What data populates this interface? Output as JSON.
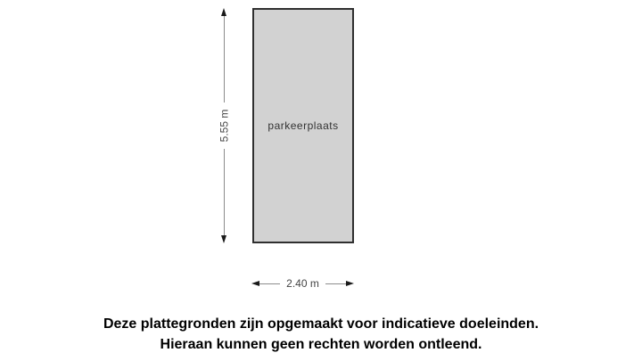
{
  "floorplan": {
    "room_label": "parkeerplaats",
    "height_label": "5.55 m",
    "width_label": "2.40 m"
  },
  "disclaimer": {
    "line1": "Deze plattegronden zijn opgemaakt voor indicatieve doeleinden.",
    "line2": "Hieraan kunnen geen rechten worden ontleend."
  },
  "colors": {
    "background": "#ffffff",
    "room_fill": "#d2d2d2",
    "room_border": "#2f2f2f",
    "room_text": "#333333",
    "dim_line": "#8c8c8c",
    "dim_text": "#444444",
    "arrow": "#1a1a1a",
    "disclaimer_text": "#000000"
  }
}
